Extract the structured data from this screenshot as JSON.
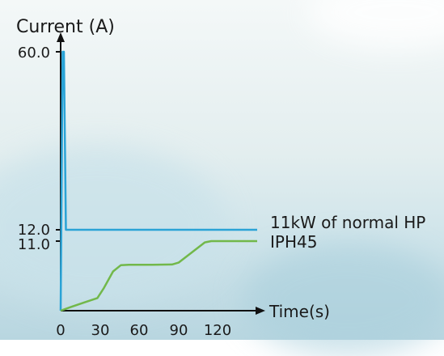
{
  "chart_data": {
    "type": "line",
    "ylabel": "Current (A)",
    "xlabel": "Time(s)",
    "x_ticks": [
      "0",
      "30",
      "60",
      "90",
      "120"
    ],
    "y_ticks": [
      "11.0",
      "12.0",
      "60.0"
    ],
    "x_domain": [
      0,
      150
    ],
    "series": [
      {
        "name": "11kW of normal HP",
        "color": "#2aa3d6",
        "points": [
          [
            0,
            0
          ],
          [
            1.5,
            60.0
          ],
          [
            2.5,
            60.0
          ],
          [
            4,
            12.0
          ],
          [
            150,
            12.0
          ]
        ]
      },
      {
        "name": "IPH45",
        "color": "#72b84a",
        "points": [
          [
            0,
            0
          ],
          [
            8,
            0.6
          ],
          [
            18,
            1.3
          ],
          [
            28,
            2.0
          ],
          [
            33,
            3.6
          ],
          [
            40,
            6.2
          ],
          [
            46,
            7.2
          ],
          [
            52,
            7.25
          ],
          [
            70,
            7.25
          ],
          [
            85,
            7.3
          ],
          [
            90,
            7.6
          ],
          [
            100,
            9.2
          ],
          [
            110,
            10.8
          ],
          [
            115,
            11.0
          ],
          [
            150,
            11.0
          ]
        ]
      }
    ]
  }
}
